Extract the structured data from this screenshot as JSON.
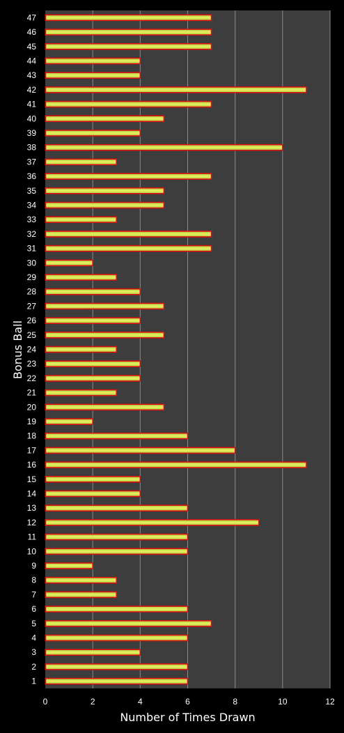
{
  "chart_data": {
    "type": "bar",
    "orientation": "horizontal",
    "xlabel": "Number of Times Drawn",
    "ylabel": "Bonus Ball",
    "xlim": [
      0,
      12
    ],
    "xticks": [
      0,
      2,
      4,
      6,
      8,
      10,
      12
    ],
    "grid": true,
    "categories": [
      "1",
      "2",
      "3",
      "4",
      "5",
      "6",
      "7",
      "8",
      "9",
      "10",
      "11",
      "12",
      "13",
      "14",
      "15",
      "16",
      "17",
      "18",
      "19",
      "20",
      "21",
      "22",
      "23",
      "24",
      "25",
      "26",
      "27",
      "28",
      "29",
      "30",
      "31",
      "32",
      "33",
      "34",
      "35",
      "36",
      "37",
      "38",
      "39",
      "40",
      "41",
      "42",
      "43",
      "44",
      "45",
      "46",
      "47"
    ],
    "values": [
      6,
      6,
      4,
      6,
      7,
      6,
      3,
      3,
      2,
      6,
      6,
      9,
      6,
      4,
      4,
      11,
      8,
      6,
      2,
      5,
      3,
      4,
      4,
      3,
      5,
      4,
      5,
      4,
      3,
      2,
      7,
      7,
      3,
      5,
      5,
      7,
      3,
      10,
      4,
      5,
      7,
      11,
      4,
      4,
      7,
      7,
      7
    ],
    "colors": {
      "background": "#000000",
      "plot_area": "#3d3d3d",
      "gridline": "#8a8a8a",
      "bar_edge": "#e01010",
      "bar_mid": "#ecf060",
      "bar_outer": "#a2cf40"
    }
  }
}
